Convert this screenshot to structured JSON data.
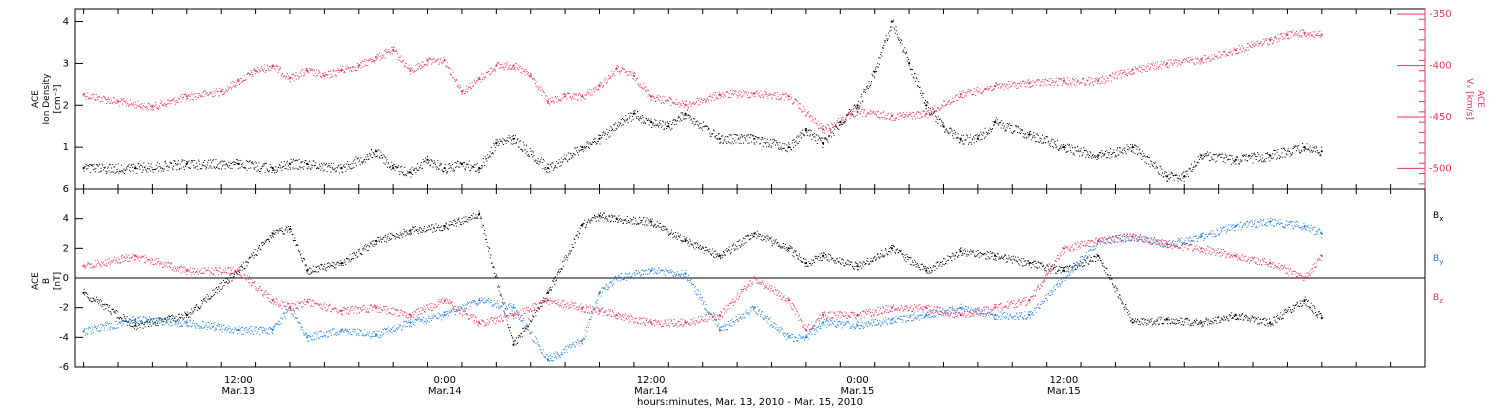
{
  "chart_data": [
    {
      "type": "scatter",
      "panel": "top",
      "left_axis": {
        "label_lines": [
          "ACE",
          "Ion Density",
          "[cm⁻³]"
        ],
        "ylim": [
          0,
          4.3
        ],
        "ticks": [
          1,
          2,
          3,
          4
        ],
        "color": "#000000"
      },
      "right_axis": {
        "label": "ACE",
        "label_line2": "Vₓ [km/s]",
        "ylim": [
          -520,
          -345
        ],
        "ticks": [
          -500,
          -450,
          -400,
          -350
        ],
        "color": "#e8365d"
      },
      "series": [
        {
          "axis": "left",
          "color": "#000000",
          "x": [
            -9,
            -6,
            -3,
            0,
            2,
            3,
            4,
            6,
            8,
            9,
            10,
            11,
            12,
            13,
            14,
            15,
            16,
            18,
            20,
            21,
            23,
            24,
            25,
            26,
            28,
            30,
            32,
            33,
            34,
            35,
            36,
            37,
            38,
            39,
            40,
            41,
            42,
            43,
            44,
            46,
            48,
            50,
            52,
            54,
            55,
            56,
            58,
            60,
            62,
            63
          ],
          "y": [
            0.5,
            0.5,
            0.6,
            0.6,
            0.5,
            0.6,
            0.6,
            0.5,
            0.9,
            0.5,
            0.4,
            0.7,
            0.5,
            0.6,
            0.5,
            1.1,
            1.2,
            0.5,
            1.0,
            1.2,
            1.8,
            1.6,
            1.5,
            1.8,
            1.2,
            1.2,
            1.0,
            1.4,
            1.1,
            1.6,
            2.0,
            2.8,
            4.0,
            3.0,
            2.0,
            1.5,
            1.2,
            1.2,
            1.6,
            1.3,
            1.0,
            0.8,
            1.0,
            0.3,
            0.3,
            0.8,
            0.7,
            0.8,
            1.0,
            0.9
          ]
        },
        {
          "axis": "right",
          "color": "#e8365d",
          "x": [
            -9,
            -7,
            -5,
            -3,
            -1,
            0,
            1,
            2,
            3,
            4,
            5,
            6,
            7,
            8,
            9,
            10,
            11,
            12,
            13,
            14,
            15,
            16,
            17,
            18,
            19,
            20,
            21,
            22,
            23,
            24,
            26,
            28,
            30,
            32,
            34,
            36,
            38,
            40,
            42,
            44,
            46,
            48,
            50,
            52,
            54,
            56,
            58,
            60,
            61,
            62,
            63
          ],
          "y": [
            -428,
            -435,
            -440,
            -430,
            -425,
            -415,
            -405,
            -400,
            -412,
            -405,
            -410,
            -404,
            -400,
            -392,
            -385,
            -405,
            -395,
            -395,
            -425,
            -413,
            -400,
            -400,
            -410,
            -435,
            -430,
            -430,
            -420,
            -403,
            -410,
            -430,
            -438,
            -428,
            -427,
            -430,
            -462,
            -445,
            -449,
            -447,
            -428,
            -420,
            -417,
            -415,
            -415,
            -404,
            -398,
            -394,
            -385,
            -375,
            -370,
            -368,
            -370
          ]
        }
      ]
    },
    {
      "type": "scatter",
      "panel": "bottom",
      "left_axis": {
        "label_lines": [
          "ACE",
          "B",
          "[nT]"
        ],
        "ylim": [
          -6,
          6
        ],
        "ticks": [
          -6,
          -4,
          -2,
          0,
          2,
          4,
          6
        ],
        "color": "#000000"
      },
      "zero_line": true,
      "legend_position": "right",
      "series": [
        {
          "name": "Bx",
          "color": "#000000",
          "x": [
            -9,
            -6,
            -3,
            0,
            2,
            3,
            4,
            6,
            8,
            10,
            12,
            14,
            16,
            18,
            20,
            21,
            22,
            24,
            26,
            28,
            30,
            32,
            33,
            34,
            36,
            38,
            40,
            42,
            44,
            46,
            48,
            50,
            52,
            54,
            56,
            58,
            60,
            62,
            63
          ],
          "y": [
            -1.0,
            -3.2,
            -2.5,
            0.5,
            3.0,
            3.3,
            0.5,
            1.0,
            2.5,
            3.2,
            3.5,
            4.3,
            -4.5,
            -1.0,
            3.6,
            4.2,
            4.0,
            3.8,
            2.5,
            1.5,
            3.0,
            2.0,
            1.0,
            1.5,
            0.8,
            2.0,
            0.5,
            1.8,
            1.5,
            1.0,
            0.5,
            1.5,
            -3.0,
            -2.8,
            -3.0,
            -2.5,
            -3.0,
            -1.5,
            -2.7
          ]
        },
        {
          "name": "By",
          "color": "#1c7fd8",
          "x": [
            -9,
            -6,
            -3,
            0,
            2,
            3,
            4,
            6,
            8,
            10,
            12,
            14,
            16,
            18,
            20,
            21,
            22,
            24,
            26,
            28,
            30,
            32,
            33,
            34,
            36,
            38,
            40,
            42,
            44,
            46,
            48,
            50,
            52,
            54,
            56,
            58,
            60,
            62,
            63
          ],
          "y": [
            -3.6,
            -2.8,
            -3.0,
            -3.5,
            -3.5,
            -2.0,
            -4.0,
            -3.5,
            -3.8,
            -3.0,
            -2.5,
            -1.5,
            -2.0,
            -5.5,
            -4.2,
            -1.0,
            0.0,
            0.5,
            0.3,
            -3.5,
            -2.0,
            -4.0,
            -4.0,
            -3.0,
            -3.2,
            -2.8,
            -2.5,
            -2.0,
            -2.5,
            -2.5,
            0.0,
            2.5,
            2.8,
            2.3,
            2.8,
            3.5,
            3.8,
            3.5,
            3.0
          ]
        },
        {
          "name": "Bz",
          "color": "#e8365d",
          "x": [
            -9,
            -6,
            -3,
            0,
            2,
            3,
            4,
            6,
            8,
            10,
            12,
            14,
            16,
            18,
            20,
            21,
            22,
            24,
            26,
            28,
            30,
            32,
            33,
            34,
            36,
            38,
            40,
            42,
            44,
            46,
            48,
            50,
            52,
            54,
            56,
            58,
            60,
            62,
            63
          ],
          "y": [
            0.8,
            1.5,
            0.5,
            0.5,
            -1.5,
            -2.0,
            -1.6,
            -2.2,
            -2.0,
            -2.5,
            -1.5,
            -3.0,
            -2.5,
            -1.5,
            -2.0,
            -2.2,
            -2.5,
            -3.0,
            -3.0,
            -2.5,
            0.0,
            -1.5,
            -3.5,
            -2.5,
            -2.5,
            -2.0,
            -2.0,
            -2.5,
            -2.0,
            -1.5,
            2.0,
            2.5,
            2.8,
            2.3,
            2.0,
            1.5,
            1.0,
            0.0,
            1.5
          ]
        }
      ]
    }
  ],
  "legend": {
    "bx": "B",
    "bx_sub": "x",
    "by": "B",
    "by_sub": "y",
    "bz": "B",
    "bz_sub": "z"
  },
  "time_axis": {
    "range_hours": [
      -9.5,
      69
    ],
    "ticks": [
      {
        "hours": 0,
        "time": "12:00",
        "date": "Mar.13"
      },
      {
        "hours": 12,
        "time": "0:00",
        "date": "Mar.14"
      },
      {
        "hours": 24,
        "time": "12:00",
        "date": "Mar.14"
      },
      {
        "hours": 36,
        "time": "0:00",
        "date": "Mar.15"
      },
      {
        "hours": 48,
        "time": "12:00",
        "date": "Mar.15"
      }
    ],
    "xlabel": "hours:minutes, Mar. 13, 2010 - Mar. 15, 2010"
  },
  "colors": {
    "axis": "#000000",
    "vx": "#e8365d",
    "by": "#1c7fd8",
    "bz": "#e8365d"
  }
}
